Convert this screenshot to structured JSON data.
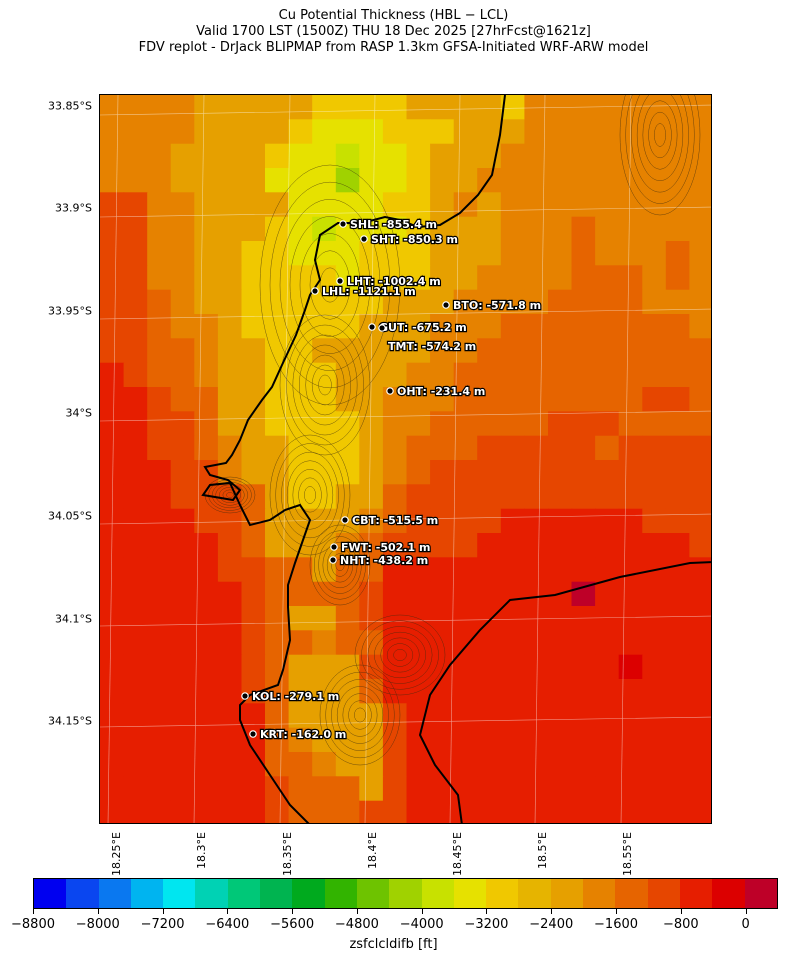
{
  "title": {
    "line1": "Cu Potential Thickness (HBL − LCL)",
    "line2": "Valid 1700 LST (1500Z) THU 18 Dec 2025 [27hrFcst@1621z]",
    "line3": "FDV replot - DrJack BLIPMAP from RASP 1.3km GFSA-Initiated WRF-ARW model"
  },
  "map": {
    "lat_labels": [
      "33.85°S",
      "33.9°S",
      "33.95°S",
      "34°S",
      "34.05°S",
      "34.1°S",
      "34.15°S"
    ],
    "lon_labels": [
      "18.25°E",
      "18.3°E",
      "18.35°E",
      "18.4°E",
      "18.45°E",
      "18.5°E",
      "18.55°E"
    ],
    "stations": [
      {
        "id": "SHL",
        "text": "SHL: -855.4 m"
      },
      {
        "id": "SHT",
        "text": "SHT: -850.3 m"
      },
      {
        "id": "LHT",
        "text": "LHT: -1002.4 m"
      },
      {
        "id": "LHL",
        "text": "LHL: -1121.1 m"
      },
      {
        "id": "BTO",
        "text": "BTO: -571.8 m"
      },
      {
        "id": "GUT",
        "text": "GUT: -675.2 m"
      },
      {
        "id": "TMT",
        "text": "TMT: -574.2 m"
      },
      {
        "id": "OHT",
        "text": "OHT: -231.4 m"
      },
      {
        "id": "CBT",
        "text": "CBT: -515.5 m"
      },
      {
        "id": "FWT",
        "text": "FWT: -502.1 m"
      },
      {
        "id": "NHT",
        "text": "NHT: -438.2 m"
      },
      {
        "id": "KOL",
        "text": "KOL: -279.1 m"
      },
      {
        "id": "KRT",
        "text": "KRT: -162.0 m"
      }
    ]
  },
  "colorbar": {
    "label": "zsfclcldifb [ft]",
    "ticks": [
      "−8800",
      "−8000",
      "−7200",
      "−6400",
      "−5600",
      "−4800",
      "−4000",
      "−3200",
      "−2400",
      "−1600",
      "−800",
      "0"
    ],
    "colors": [
      "#0000f0",
      "#0a46f0",
      "#0a78f0",
      "#00b4f0",
      "#00e6f0",
      "#00d2b4",
      "#00c878",
      "#00b450",
      "#00aa1e",
      "#32b400",
      "#6ec300",
      "#a0d200",
      "#c8e100",
      "#e6e100",
      "#f0c800",
      "#e6b400",
      "#e6a000",
      "#e68200",
      "#e66400",
      "#e64600",
      "#e61e00",
      "#dc0000",
      "#be0028"
    ]
  }
}
